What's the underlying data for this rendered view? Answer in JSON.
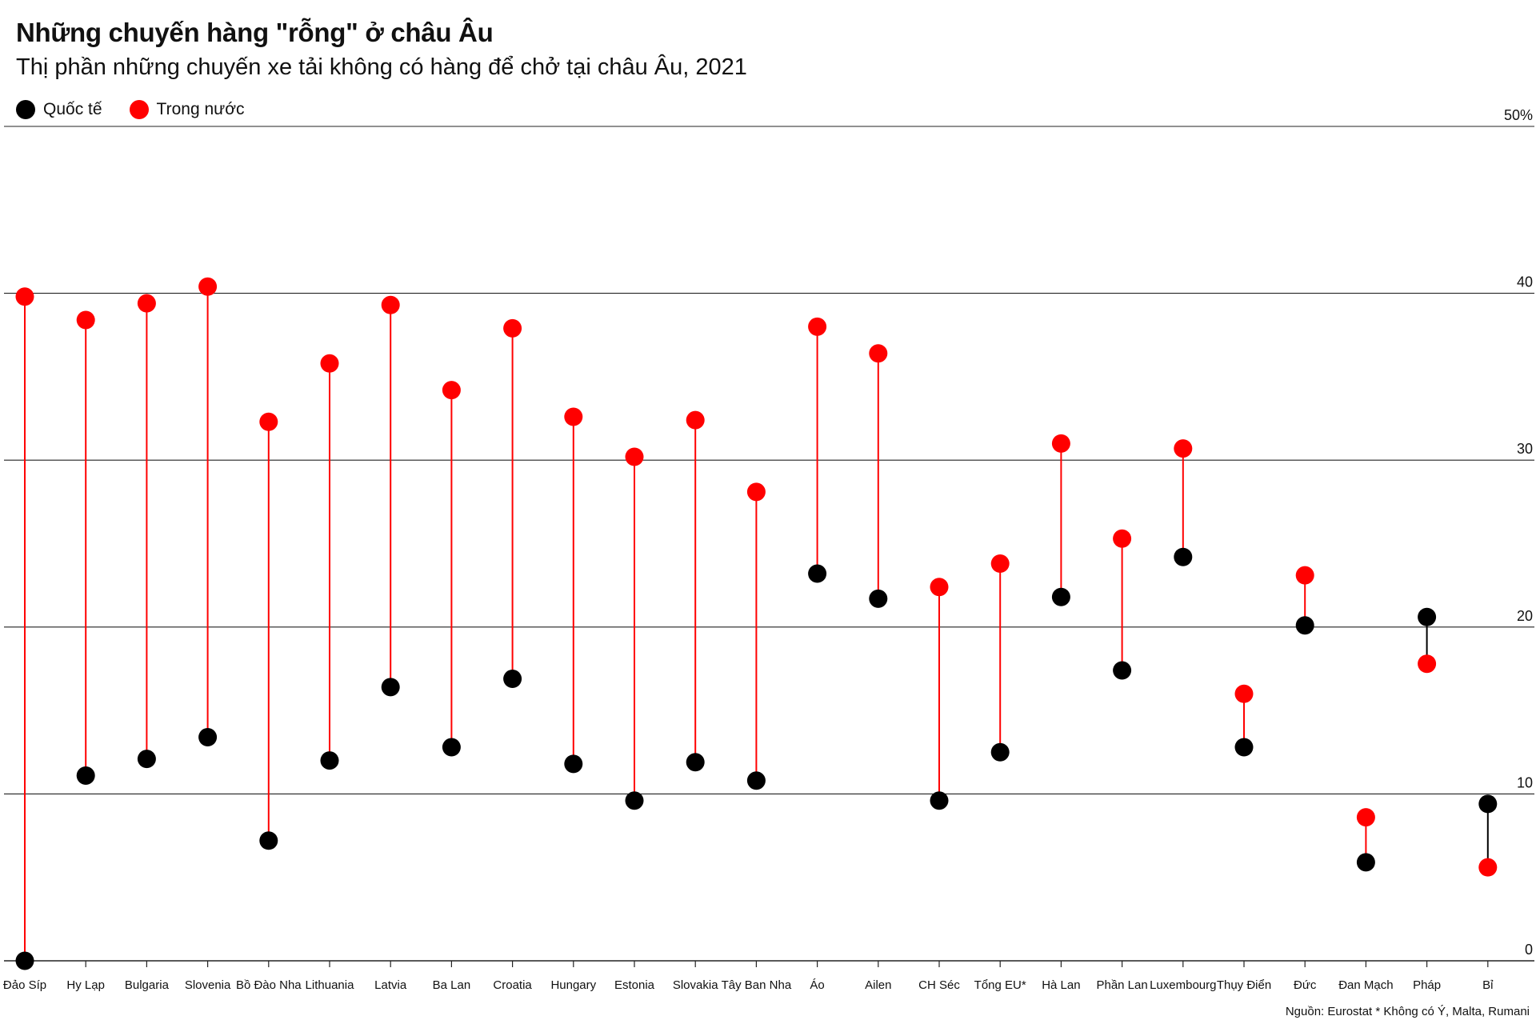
{
  "chart_data": {
    "type": "dumbbell",
    "title": "Những chuyến hàng \"rỗng\" ở châu Âu",
    "subtitle": "Thị phần những chuyến xe tải không có hàng để chở tại châu Âu, 2021",
    "legend": [
      {
        "name": "Quốc tế",
        "color": "#000000"
      },
      {
        "name": "Trong nước",
        "color": "#ff0000"
      }
    ],
    "ylim": [
      0,
      50
    ],
    "yticks": [
      {
        "value": 0,
        "label": "0"
      },
      {
        "value": 10,
        "label": "10"
      },
      {
        "value": 20,
        "label": "20"
      },
      {
        "value": 30,
        "label": "30"
      },
      {
        "value": 40,
        "label": "40"
      },
      {
        "value": 50,
        "label": "50%"
      }
    ],
    "categories": [
      "Đảo Síp",
      "Hy Lạp",
      "Bulgaria",
      "Slovenia",
      "Bồ Đào Nha",
      "Lithuania",
      "Latvia",
      "Ba Lan",
      "Croatia",
      "Hungary",
      "Estonia",
      "Slovakia",
      "Tây Ban Nha",
      "Áo",
      "Ailen",
      "CH Séc",
      "Tổng EU*",
      "Hà Lan",
      "Phần Lan",
      "Luxembourg",
      "Thụy Điển",
      "Đức",
      "Đan Mạch",
      "Pháp",
      "Bỉ"
    ],
    "series": [
      {
        "name": "Quốc tế",
        "color": "#000000",
        "values": [
          0.0,
          11.1,
          12.1,
          13.4,
          7.2,
          12.0,
          16.4,
          12.8,
          16.9,
          11.8,
          9.6,
          11.9,
          10.8,
          23.2,
          21.7,
          9.6,
          12.5,
          21.8,
          17.4,
          24.2,
          12.8,
          20.1,
          5.9,
          20.6,
          9.4
        ]
      },
      {
        "name": "Trong nước",
        "color": "#ff0000",
        "values": [
          39.8,
          38.4,
          39.4,
          40.4,
          32.3,
          35.8,
          39.3,
          34.2,
          37.9,
          32.6,
          30.2,
          32.4,
          28.1,
          38.0,
          36.4,
          22.4,
          23.8,
          31.0,
          25.3,
          30.7,
          16.0,
          23.1,
          8.6,
          17.8,
          5.6
        ]
      }
    ],
    "source": "Nguồn: Eurostat  * Không có Ý, Malta, Rumani"
  }
}
